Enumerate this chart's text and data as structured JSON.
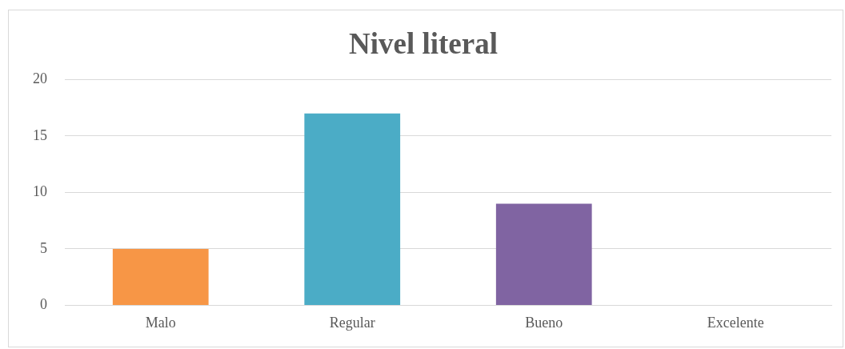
{
  "chart_data": {
    "type": "bar",
    "title": "Nivel literal",
    "categories": [
      "Malo",
      "Regular",
      "Bueno",
      "Excelente"
    ],
    "values": [
      5,
      17,
      9,
      0
    ],
    "colors": [
      "#f79646",
      "#4bacc6",
      "#8064a2",
      "#9bbb59"
    ],
    "ylim": [
      0,
      20
    ],
    "yticks": [
      0,
      5,
      10,
      15,
      20
    ],
    "grid": "y",
    "legend": false
  }
}
